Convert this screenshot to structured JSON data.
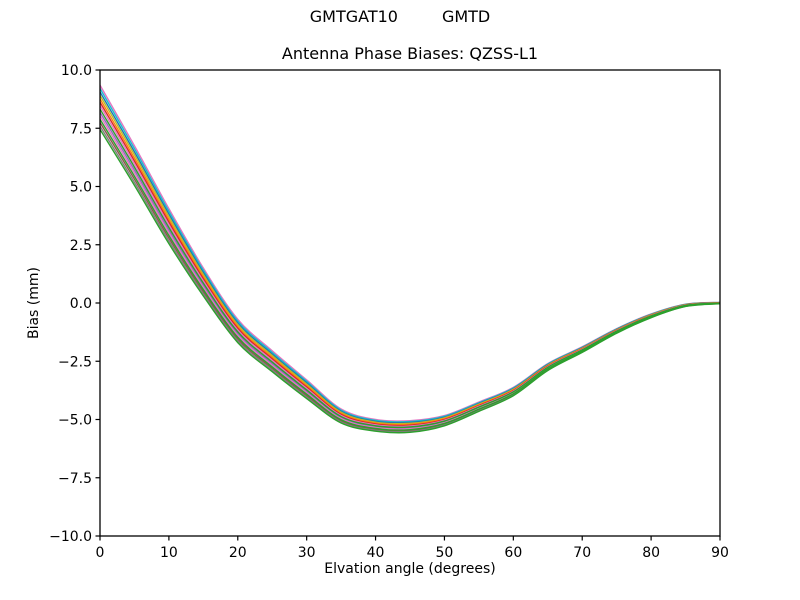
{
  "chart_data": {
    "type": "line",
    "suptitle_parts": [
      "GMTGAT10",
      "GMTD"
    ],
    "title": "Antenna Phase Biases: QZSS-L1",
    "xlabel": "Elvation angle (degrees)",
    "ylabel": "Bias (mm)",
    "xlim": [
      0,
      90
    ],
    "ylim": [
      -10,
      10
    ],
    "xticks": [
      0,
      10,
      20,
      30,
      40,
      50,
      60,
      70,
      80,
      90
    ],
    "yticks": [
      10,
      7.5,
      5,
      2.5,
      0,
      -2.5,
      -5,
      -7.5,
      -10
    ],
    "grid": false,
    "legend": "none",
    "x": [
      0,
      5,
      10,
      15,
      20,
      25,
      30,
      35,
      40,
      45,
      50,
      55,
      60,
      65,
      70,
      75,
      80,
      85,
      90
    ],
    "mean_bias": [
      8.4,
      5.9,
      3.3,
      0.9,
      -1.2,
      -2.5,
      -3.7,
      -4.85,
      -5.25,
      -5.3,
      -5.05,
      -4.45,
      -3.8,
      -2.75,
      -2.0,
      -1.2,
      -0.55,
      -0.1,
      0.0
    ],
    "spread_halfwidth": [
      0.95,
      0.85,
      0.75,
      0.6,
      0.5,
      0.45,
      0.4,
      0.3,
      0.25,
      0.25,
      0.22,
      0.2,
      0.18,
      0.15,
      0.12,
      0.1,
      0.08,
      0.05,
      0.03
    ],
    "series_value_rule": "value(i) = mean_bias[i] + offset_frac * spread_halfwidth[i]",
    "series": [
      {
        "color": "#e377c2",
        "offset_frac": 1.0
      },
      {
        "color": "#17becf",
        "offset_frac": 0.85
      },
      {
        "color": "#1f77b4",
        "offset_frac": 0.69
      },
      {
        "color": "#bcbd22",
        "offset_frac": 0.54
      },
      {
        "color": "#ff7f0e",
        "offset_frac": 0.38
      },
      {
        "color": "#d62728",
        "offset_frac": 0.23
      },
      {
        "color": "#e377c2",
        "offset_frac": 0.08
      },
      {
        "color": "#9467bd",
        "offset_frac": -0.23
      },
      {
        "color": "#e377c2",
        "offset_frac": -0.38
      },
      {
        "color": "#8c564b",
        "offset_frac": -0.69
      },
      {
        "color": "#7f7f7f",
        "offset_frac": -0.85
      },
      {
        "color": "#2ca02c",
        "offset_frac": -1.0
      },
      {
        "color": "#2ca02c",
        "offset_frac": -0.54
      },
      {
        "color": "#2ca02c",
        "offset_frac": -0.08
      }
    ],
    "colors": {
      "figure_facecolor": "#ffffff",
      "axes_facecolor": "#ffffff",
      "spine_color": "#000000",
      "tick_color": "#000000",
      "text_color": "#000000"
    }
  }
}
